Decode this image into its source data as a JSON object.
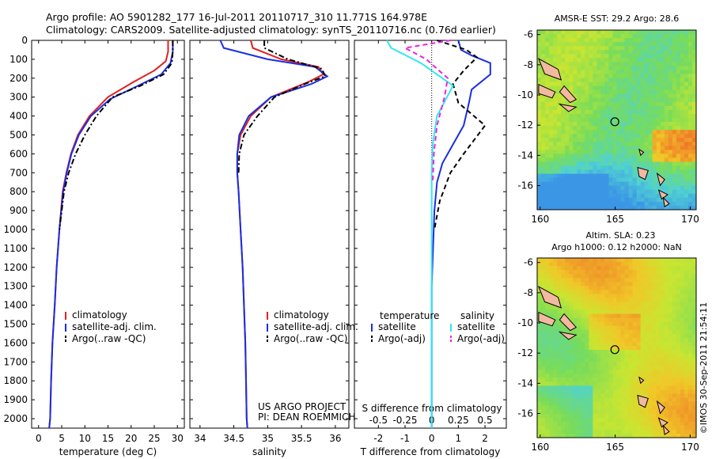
{
  "header": {
    "line1": "Argo profile: AO 5901282_177 16-Jul-2011 20110717_310 11.771S 164.978E",
    "line2": "Climatology: CARS2009. Satellite-adjusted climatology: synTS_20110716.nc (0.76d earlier)"
  },
  "colors": {
    "climatology": "#e02020",
    "satellite": "#1a2ee0",
    "argo": "#000000",
    "sal_satellite": "#33e6f2",
    "sal_argo": "#ee22dd"
  },
  "chart_data": [
    {
      "type": "line",
      "xlabel": "temperature (deg C)",
      "xticks": [
        0,
        5,
        10,
        15,
        20,
        25,
        30
      ],
      "xlim": [
        -1.5,
        31.5
      ],
      "ylim": [
        0,
        2050
      ],
      "yreversed": true,
      "yticks": [
        0,
        100,
        200,
        300,
        400,
        500,
        600,
        700,
        800,
        900,
        1000,
        1100,
        1200,
        1300,
        1400,
        1500,
        1600,
        1700,
        1800,
        1900,
        2000
      ],
      "legend": [
        "climatology",
        "satellite-adj. clim.",
        "Argo(..raw -QC)"
      ],
      "series": [
        {
          "name": "climatology",
          "style": "solid",
          "x": [
            28.0,
            28.0,
            27.5,
            25.0,
            20.5,
            15.0,
            11.0,
            8.5,
            7.0,
            6.0,
            5.2,
            4.5,
            3.9,
            3.5,
            3.0,
            2.7,
            2.5,
            2.3
          ],
          "y": [
            0,
            60,
            110,
            160,
            220,
            300,
            400,
            500,
            600,
            700,
            800,
            1000,
            1200,
            1400,
            1600,
            1800,
            2000,
            2050
          ]
        },
        {
          "name": "satellite-adj. clim.",
          "style": "solid",
          "x": [
            29.0,
            29.0,
            28.5,
            26.5,
            21.5,
            15.5,
            11.3,
            8.7,
            7.1,
            6.1,
            5.3,
            4.5,
            3.9,
            3.5,
            3.0,
            2.7,
            2.5,
            2.3
          ],
          "y": [
            0,
            60,
            120,
            180,
            240,
            310,
            400,
            500,
            600,
            700,
            800,
            1000,
            1200,
            1400,
            1600,
            1800,
            2000,
            2050
          ]
        },
        {
          "name": "Argo(..raw -QC)",
          "style": "dashdot",
          "x": [
            29.0,
            29.0,
            28.8,
            27.0,
            22.0,
            16.0,
            12.5,
            10.0,
            8.0,
            6.5,
            5.5,
            4.5
          ],
          "y": [
            0,
            60,
            120,
            180,
            240,
            300,
            400,
            500,
            600,
            700,
            800,
            1000
          ]
        }
      ]
    },
    {
      "type": "line",
      "xlabel": "salinity",
      "xticks": [
        34,
        34.5,
        35,
        35.5,
        36
      ],
      "xlim": [
        33.85,
        36.2
      ],
      "ylim": [
        0,
        2050
      ],
      "yreversed": true,
      "legend": [
        "climatology",
        "satellite-adj. clim.",
        "Argo(..raw -QC)"
      ],
      "series": [
        {
          "name": "climatology",
          "style": "solid",
          "x": [
            34.75,
            34.78,
            35.2,
            35.75,
            35.82,
            35.6,
            35.05,
            34.75,
            34.6,
            34.55,
            34.55,
            34.57,
            34.6,
            34.63,
            34.65,
            34.67,
            34.68,
            34.69,
            34.7
          ],
          "y": [
            0,
            40,
            100,
            140,
            180,
            220,
            300,
            400,
            500,
            600,
            700,
            800,
            1000,
            1200,
            1400,
            1600,
            1800,
            2000,
            2050
          ]
        },
        {
          "name": "satellite-adj. clim.",
          "style": "solid",
          "x": [
            34.3,
            34.35,
            35.0,
            35.7,
            35.88,
            35.65,
            35.05,
            34.72,
            34.58,
            34.55,
            34.55,
            34.57,
            34.6,
            34.63,
            34.65,
            34.67,
            34.68,
            34.69,
            34.7
          ],
          "y": [
            0,
            40,
            100,
            140,
            190,
            230,
            300,
            400,
            500,
            600,
            700,
            800,
            1000,
            1200,
            1400,
            1600,
            1800,
            2000,
            2050
          ]
        },
        {
          "name": "Argo(..raw -QC)",
          "style": "dashdot",
          "x": [
            34.95,
            34.95,
            35.3,
            35.8,
            35.85,
            35.55,
            35.1,
            34.85,
            34.65,
            34.58,
            34.57
          ],
          "y": [
            0,
            40,
            100,
            150,
            190,
            230,
            300,
            400,
            500,
            600,
            700
          ]
        }
      ]
    },
    {
      "type": "line",
      "xlabel": "T difference from climatology",
      "xlabel2": "S difference from climatology",
      "xticks": [
        -2,
        -1,
        0,
        1,
        2
      ],
      "xticks2": [
        -0.5,
        -0.25,
        0,
        0.25,
        0.5
      ],
      "xticklabels2": [
        "-0.5",
        "-0.25",
        "0",
        "0.25",
        "0.5"
      ],
      "xlim": [
        -2.9,
        2.8
      ],
      "ylim": [
        0,
        2050
      ],
      "yreversed": true,
      "legend_title_left": "temperature",
      "legend_title_right": "salinity",
      "legend": [
        "satellite",
        "Argo(-adj)",
        "satellite",
        "Argo(-adj)"
      ],
      "series": [
        {
          "name": "satellite",
          "group": "temperature",
          "style": "solid",
          "x": [
            1.0,
            1.1,
            1.5,
            2.2,
            2.2,
            1.5,
            1.4,
            1.2,
            0.8,
            0.4,
            0.2,
            0.1,
            0.05,
            0.0,
            0.0,
            0.0
          ],
          "y": [
            0,
            50,
            80,
            120,
            180,
            260,
            330,
            450,
            550,
            650,
            750,
            900,
            1100,
            1300,
            1600,
            2050
          ]
        },
        {
          "name": "Argo(-adj)",
          "group": "temperature",
          "style": "dashed",
          "x": [
            0.2,
            1.3,
            1.7,
            1.2,
            0.8,
            1.0,
            2.0,
            1.2,
            0.7,
            0.3,
            0.1
          ],
          "y": [
            0,
            50,
            90,
            160,
            230,
            330,
            450,
            600,
            700,
            850,
            1000
          ]
        },
        {
          "name": "satellite",
          "group": "salinity",
          "style": "solid",
          "x": [
            -0.42,
            -0.38,
            -0.1,
            0.2,
            0.05,
            0.01,
            0.0,
            0.0,
            0.0
          ],
          "y": [
            0,
            40,
            120,
            240,
            400,
            550,
            700,
            1000,
            2050
          ]
        },
        {
          "name": "Argo(-adj)",
          "group": "salinity",
          "style": "dashed",
          "x": [
            0.18,
            -0.25,
            -0.05,
            0.15,
            0.12,
            0.05,
            0.02,
            0.01
          ],
          "y": [
            0,
            40,
            100,
            200,
            300,
            450,
            600,
            750
          ]
        }
      ]
    },
    {
      "type": "heatmap",
      "title": "AMSR-E SST: 29.2 Argo: 28.6",
      "xticks": [
        160,
        165,
        170
      ],
      "yticks": [
        -6,
        -8,
        -10,
        -12,
        -14,
        -16
      ],
      "xlim": [
        159.8,
        170.4
      ],
      "ylim": [
        -17.6,
        -5.7
      ],
      "marker": {
        "lon": 164.978,
        "lat": -11.771
      }
    },
    {
      "type": "heatmap",
      "title": "Altim. SLA: 0.23",
      "title2": "Argo h1000: 0.12 h2000: NaN",
      "xticks": [
        160,
        165,
        170
      ],
      "yticks": [
        -6,
        -8,
        -10,
        -12,
        -14,
        -16
      ],
      "xlim": [
        159.8,
        170.4
      ],
      "ylim": [
        -17.6,
        -5.7
      ],
      "marker": {
        "lon": 164.978,
        "lat": -11.771
      }
    }
  ],
  "footer": {
    "project_line1": "US ARGO PROJECT",
    "project_line2": "PI: DEAN ROEMMICH",
    "credit": "©IMOS 30-Sep-2011 21:54:11"
  }
}
